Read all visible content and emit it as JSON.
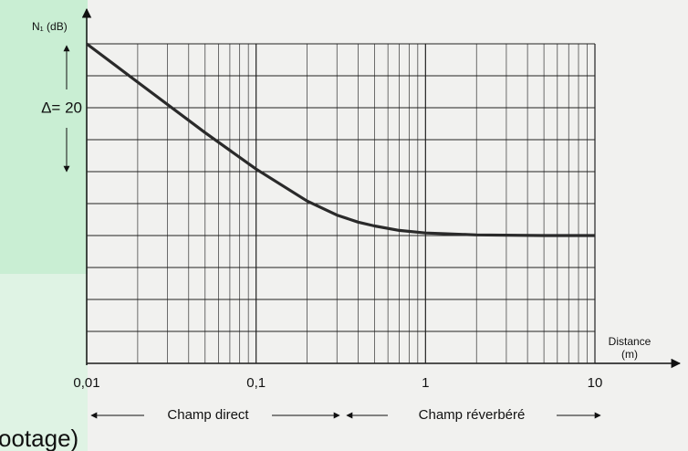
{
  "chart_data": {
    "type": "line",
    "y_label": "N₁ (dB)",
    "x_label": [
      "Distance",
      "(m)"
    ],
    "annotations": {
      "delta": "Δ= 20",
      "direct": "Champ direct",
      "reverb": "Champ réverbéré"
    },
    "x": [
      0.01,
      0.02,
      0.05,
      0.1,
      0.2,
      0.3,
      0.4,
      0.5,
      0.7,
      1,
      2,
      5,
      10
    ],
    "values": [
      50,
      44,
      36.1,
      30.4,
      25.4,
      23.2,
      22.1,
      21.5,
      20.8,
      20.4,
      20.1,
      20,
      20
    ],
    "color": "#2a2a2a",
    "xlim": [
      0.01,
      10
    ],
    "x_log": true,
    "xticks": [
      {
        "value": 0.01,
        "label": "0,01"
      },
      {
        "value": 0.1,
        "label": "0,1"
      },
      1,
      10
    ],
    "ylim": [
      0,
      50
    ],
    "yticks": [
      0,
      5,
      10,
      15,
      20,
      25,
      30,
      35,
      40,
      45,
      50
    ],
    "y_tick_labels": false,
    "grid": true,
    "minor_grid": true
  },
  "caption": "ootage)"
}
